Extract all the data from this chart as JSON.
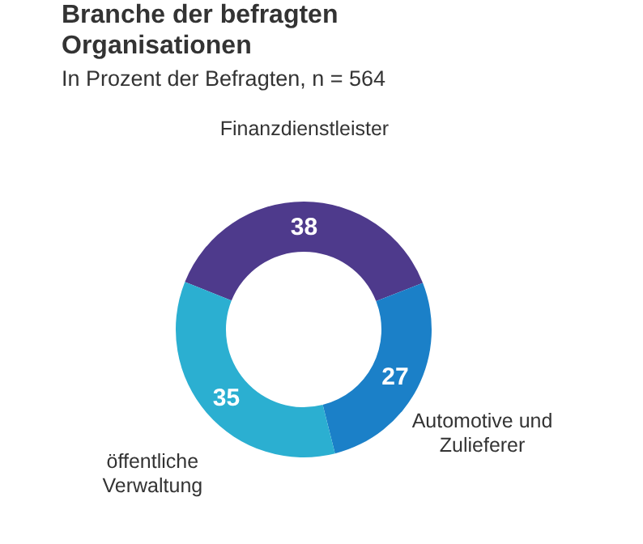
{
  "chart_data": {
    "type": "donut",
    "title": "Branche der befragten Organisationen",
    "subtitle": "In Prozent der Befragten, n = 564",
    "categories": [
      "Finanzdienstleister",
      "Automotive und Zulieferer",
      "öffentliche Verwaltung"
    ],
    "values": [
      38,
      27,
      35
    ],
    "colors": [
      "#4e3a8c",
      "#1b80c8",
      "#2bafd1"
    ],
    "data_labels": true,
    "legend": false
  }
}
